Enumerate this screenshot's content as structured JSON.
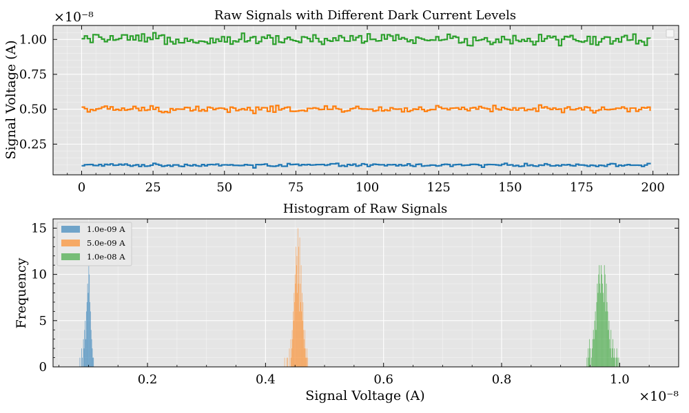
{
  "chart_data": [
    {
      "type": "line",
      "title": "Raw Signals with Different Dark Current Levels",
      "xlabel": "",
      "ylabel": "Signal Voltage (A)",
      "y_multiplier": "×10⁻⁸",
      "xlim": [
        -10,
        209
      ],
      "ylim": [
        0.03,
        1.1
      ],
      "xticks": [
        0,
        25,
        50,
        75,
        100,
        125,
        150,
        175,
        200
      ],
      "yticks": [
        0.25,
        0.5,
        0.75,
        1.0
      ],
      "ytick_labels": [
        "0.25",
        "0.50",
        "0.75",
        "1.00"
      ],
      "grid": true,
      "legend": "top-right (empty)",
      "series": [
        {
          "level": 0.1,
          "color": "#1f77b4",
          "x_range": [
            0,
            199
          ],
          "sample_values": [
            0.095,
            0.09,
            0.095,
            0.08,
            0.1,
            0.09,
            0.095,
            0.085,
            0.1,
            0.09
          ]
        },
        {
          "level": 0.5,
          "color": "#ff7f0e",
          "x_range": [
            0,
            199
          ],
          "sample_values": [
            0.515,
            0.49,
            0.52,
            0.47,
            0.505,
            0.5,
            0.485,
            0.51,
            0.53,
            0.49
          ]
        },
        {
          "level": 1.0,
          "color": "#2ca02c",
          "x_range": [
            0,
            199
          ],
          "sample_values": [
            1.005,
            0.99,
            0.975,
            1.02,
            0.985,
            1.04,
            0.995,
            1.0,
            1.035,
            0.96
          ]
        }
      ]
    },
    {
      "type": "bar",
      "subtype": "histogram",
      "title": "Histogram of Raw Signals",
      "xlabel": "Signal Voltage (A)",
      "ylabel": "Frequency",
      "x_multiplier": "×10⁻⁸",
      "xlim": [
        0.04,
        1.1
      ],
      "ylim": [
        0,
        16
      ],
      "xticks": [
        0.2,
        0.4,
        0.6,
        0.8,
        1.0
      ],
      "xtick_labels": [
        "0.2",
        "0.4",
        "0.6",
        "0.8",
        "1.0"
      ],
      "yticks": [
        0,
        5,
        10,
        15
      ],
      "grid": true,
      "legend": "top-left",
      "alpha": 0.6,
      "series": [
        {
          "name": "1.0e-09 A",
          "color": "#1f77b4",
          "bin_start": 0.085,
          "bin_width": 0.001,
          "counts": [
            1,
            0,
            0,
            2,
            1,
            0,
            3,
            2,
            4,
            5,
            3,
            6,
            7,
            9,
            8,
            11,
            10,
            7,
            6,
            4,
            3,
            2,
            1,
            1
          ]
        },
        {
          "name": "5.0e-09 A",
          "color": "#ff7f0e",
          "bin_start": 0.432,
          "bin_width": 0.0008,
          "counts": [
            1,
            0,
            0,
            0,
            0,
            1,
            1,
            0,
            0,
            0,
            2,
            0,
            0,
            3,
            1,
            2,
            4,
            3,
            6,
            5,
            8,
            7,
            10,
            9,
            13,
            11,
            12,
            8,
            15,
            9,
            13,
            6,
            14,
            9,
            7,
            11,
            6,
            8,
            5,
            7,
            4,
            3,
            2,
            4,
            2,
            1,
            1,
            2,
            0,
            1
          ]
        },
        {
          "name": "1.0e-08 A",
          "color": "#2ca02c",
          "bin_start": 0.944,
          "bin_width": 0.0011,
          "counts": [
            1,
            0,
            2,
            1,
            3,
            2,
            0,
            1,
            2,
            3,
            4,
            3,
            5,
            6,
            4,
            7,
            9,
            8,
            10,
            11,
            9,
            8,
            11,
            10,
            9,
            8,
            7,
            11,
            10,
            6,
            9,
            7,
            6,
            4,
            5,
            3,
            2,
            4,
            1,
            2,
            3,
            1,
            2,
            1,
            0,
            1,
            2,
            1,
            0,
            1
          ]
        }
      ]
    }
  ]
}
